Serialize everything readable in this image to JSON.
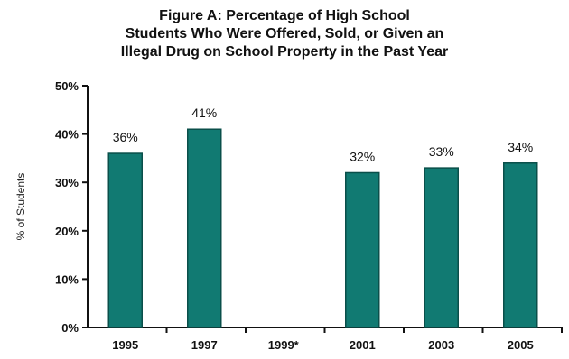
{
  "chart_data": {
    "type": "bar",
    "title_lines": [
      "Figure A: Percentage of High School",
      "Students Who Were Offered, Sold, or Given an",
      "Illegal Drug on School Property in the Past Year"
    ],
    "ylabel": "% of Students",
    "xlabel": "",
    "categories": [
      "1995",
      "1997",
      "1999*",
      "2001",
      "2003",
      "2005"
    ],
    "values": [
      36,
      41,
      null,
      32,
      33,
      34
    ],
    "data_labels": [
      "36%",
      "41%",
      "",
      "32%",
      "33%",
      "34%"
    ],
    "y_ticks": [
      "0%",
      "10%",
      "20%",
      "30%",
      "40%",
      "50%"
    ],
    "y_tick_values": [
      0,
      10,
      20,
      30,
      40,
      50
    ],
    "ylim": [
      0,
      50
    ],
    "grid": false,
    "legend": "none",
    "bar_color": "#117a72",
    "bar_edge_color": "#0a4f4a"
  }
}
